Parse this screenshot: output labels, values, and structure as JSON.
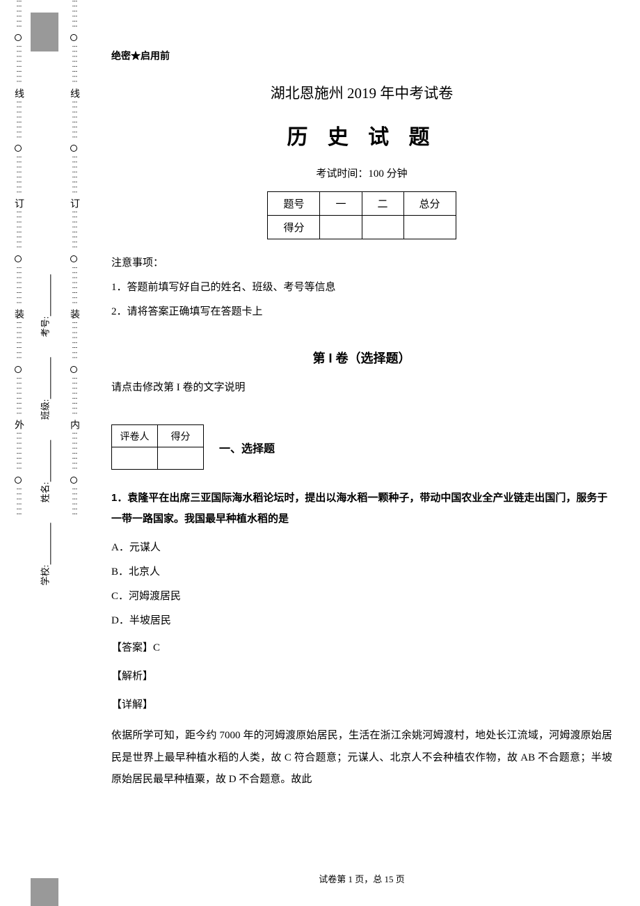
{
  "binding": {
    "outer_chars": [
      "线",
      "订",
      "装",
      "外"
    ],
    "inner_chars": [
      "线",
      "订",
      "装",
      "内"
    ],
    "dot_color": "#000000",
    "circle_color": "#000000"
  },
  "side_labels": {
    "school": "学校:",
    "name": "姓名:",
    "class": "班级:",
    "exam_no": "考号:"
  },
  "header": {
    "secret": "绝密★启用前",
    "source": "湖北恩施州 2019 年中考试卷",
    "title": "历 史 试 题",
    "exam_time": "考试时间：100 分钟"
  },
  "score_table": {
    "headers": [
      "题号",
      "一",
      "二",
      "总分"
    ],
    "row_label": "得分"
  },
  "notes": {
    "heading": "注意事项：",
    "items": [
      "1．答题前填写好自己的姓名、班级、考号等信息",
      "2．请将答案正确填写在答题卡上"
    ]
  },
  "section": {
    "title": "第 I 卷（选择题）",
    "note": "请点击修改第 I 卷的文字说明"
  },
  "grader": {
    "col1": "评卷人",
    "col2": "得分"
  },
  "sub_heading": "一、选择题",
  "q1": {
    "text": "1．袁隆平在出席三亚国际海水稻论坛时，提出以海水稻一颗种子，带动中国农业全产业链走出国门，服务于一带一路国家。我国最早种植水稻的是",
    "options": {
      "A": "A．元谋人",
      "B": "B．北京人",
      "C": "C．河姆渡居民",
      "D": "D．半坡居民"
    },
    "answer_label": "【答案】",
    "answer": "C",
    "analysis_label": "【解析】",
    "detail_label": "【详解】",
    "detail": "依据所学可知，距今约 7000 年的河姆渡原始居民，生活在浙江余姚河姆渡村，地处长江流域，河姆渡原始居民是世界上最早种植水稻的人类，故 C 符合题意；元谋人、北京人不会种植农作物，故 AB 不合题意；半坡原始居民最早种植粟，故 D 不合题意。故此"
  },
  "footer": "试卷第 1 页，总 15 页",
  "colors": {
    "text": "#000000",
    "background": "#ffffff",
    "gray_bar": "#999999",
    "border": "#000000"
  }
}
